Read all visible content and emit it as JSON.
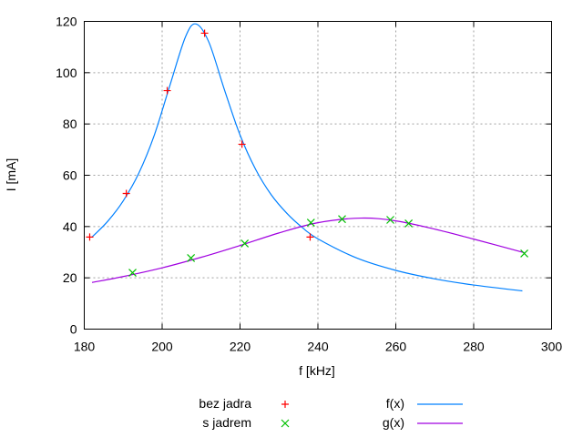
{
  "chart_data": {
    "type": "scatter",
    "title": "",
    "xlabel": "f [kHz]",
    "ylabel": "I [mA]",
    "xlim": [
      180,
      300
    ],
    "ylim": [
      0,
      120
    ],
    "xticks": [
      180,
      200,
      220,
      240,
      260,
      280,
      300
    ],
    "yticks": [
      0,
      20,
      40,
      60,
      80,
      100,
      120
    ],
    "grid": true,
    "legend_position": "bottom",
    "series": [
      {
        "name": "bez jadra",
        "kind": "points",
        "marker": "plus",
        "color": "#ff0000",
        "x": [
          181.4,
          190.8,
          201.3,
          210.9,
          220.5,
          238.0
        ],
        "y": [
          35.9,
          52.9,
          93.0,
          115.4,
          72.1,
          35.9
        ]
      },
      {
        "name": "s jadrem",
        "kind": "points",
        "marker": "cross",
        "color": "#00c000",
        "x": [
          192.4,
          207.4,
          221.2,
          238.2,
          246.2,
          258.6,
          263.3,
          293.0
        ],
        "y": [
          22.0,
          27.7,
          33.4,
          41.5,
          42.9,
          42.6,
          41.2,
          29.5
        ]
      },
      {
        "name": "f(x)",
        "kind": "line",
        "color": "#0080ff",
        "x": [
          182,
          186,
          190,
          194,
          198,
          202,
          206,
          208.7,
          212,
          216,
          220,
          224,
          228,
          232,
          236,
          240,
          250,
          260,
          270,
          280,
          292.5
        ],
        "y": [
          35.9,
          42.0,
          50.0,
          60.8,
          75.7,
          95.1,
          114.0,
          119.0,
          111.9,
          93.3,
          75.7,
          62.3,
          52.4,
          45.2,
          39.6,
          35.2,
          27.7,
          22.9,
          19.6,
          17.2,
          14.9
        ]
      },
      {
        "name": "g(x)",
        "kind": "line",
        "color": "#a000e0",
        "x": [
          182,
          190,
          200,
          210,
          220,
          230,
          240,
          251,
          260,
          270,
          280,
          293
        ],
        "y": [
          18.2,
          20.5,
          23.9,
          28.0,
          32.6,
          37.5,
          41.5,
          43.3,
          42.2,
          39.0,
          35.1,
          29.8
        ]
      }
    ]
  }
}
